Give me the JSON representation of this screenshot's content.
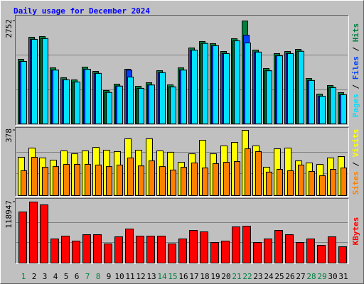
{
  "chart_data": [
    {
      "type": "bar",
      "title": "Daily usage for December 2024",
      "ylim": [
        0,
        2752
      ],
      "yticks": [
        2752
      ],
      "series": [
        {
          "name": "Hits",
          "color": "#008040",
          "values": [
            1727,
            2316,
            2335,
            1499,
            1234,
            1177,
            1518,
            1404,
            892,
            1063,
            1461,
            1006,
            1101,
            1423,
            1044,
            1499,
            2031,
            2202,
            2145,
            1936,
            2277,
            2752,
            1974,
            1480,
            1879,
            1936,
            1993,
            1215,
            797,
            1025,
            835
          ]
        },
        {
          "name": "Files",
          "color": "#0040ff",
          "values": [
            1670,
            2260,
            2280,
            1440,
            1180,
            1120,
            1460,
            1350,
            840,
            1010,
            1440,
            950,
            1040,
            1370,
            990,
            1440,
            1970,
            2150,
            2090,
            1880,
            2220,
            2372,
            1920,
            1420,
            1820,
            1880,
            1940,
            1160,
            740,
            970,
            780
          ]
        },
        {
          "name": "Pages",
          "color": "#00e0ff",
          "values": [
            1670,
            2260,
            2280,
            1440,
            1180,
            1120,
            1460,
            1350,
            840,
            1010,
            1252,
            950,
            1040,
            1370,
            990,
            1440,
            1970,
            2150,
            2090,
            1880,
            2220,
            2164,
            1920,
            1420,
            1820,
            1880,
            1940,
            1160,
            740,
            970,
            780
          ]
        }
      ]
    },
    {
      "type": "bar",
      "ylim": [
        0,
        378
      ],
      "yticks": [
        378
      ],
      "series": [
        {
          "name": "Visits",
          "color": "#ffff00",
          "values": [
            222,
            275,
            218,
            205,
            259,
            242,
            259,
            279,
            263,
            255,
            329,
            263,
            329,
            259,
            251,
            193,
            242,
            320,
            242,
            288,
            308,
            378,
            288,
            164,
            271,
            275,
            201,
            189,
            181,
            218,
            226
          ]
        },
        {
          "name": "Sites",
          "color": "#ff8000",
          "values": [
            144,
            222,
            164,
            168,
            181,
            181,
            181,
            177,
            168,
            177,
            218,
            172,
            201,
            168,
            148,
            164,
            189,
            160,
            185,
            193,
            197,
            271,
            255,
            136,
            152,
            144,
            177,
            140,
            115,
            152,
            160
          ]
        }
      ]
    },
    {
      "type": "bar",
      "ylim": [
        0,
        118947
      ],
      "yticks": [
        118947
      ],
      "categories": [
        "1",
        "2",
        "3",
        "4",
        "5",
        "6",
        "7",
        "8",
        "9",
        "10",
        "11",
        "12",
        "13",
        "14",
        "15",
        "16",
        "17",
        "18",
        "19",
        "20",
        "21",
        "22",
        "23",
        "24",
        "25",
        "26",
        "27",
        "28",
        "29",
        "30",
        "31"
      ],
      "highlight": [
        0,
        6,
        7,
        13,
        14,
        20,
        21,
        27,
        28
      ],
      "highlight_color": "#008040",
      "series": [
        {
          "name": "KBytes",
          "color": "#ff0000",
          "values": [
            99585,
            118947,
            113414,
            47025,
            52558,
            42876,
            55324,
            55324,
            37344,
            51175,
            66389,
            52558,
            52558,
            52558,
            37344,
            47025,
            63623,
            60857,
            40110,
            42876,
            70539,
            71922,
            40110,
            47025,
            63623,
            55324,
            40110,
            47025,
            34578,
            51175,
            31812
          ]
        }
      ]
    }
  ]
}
